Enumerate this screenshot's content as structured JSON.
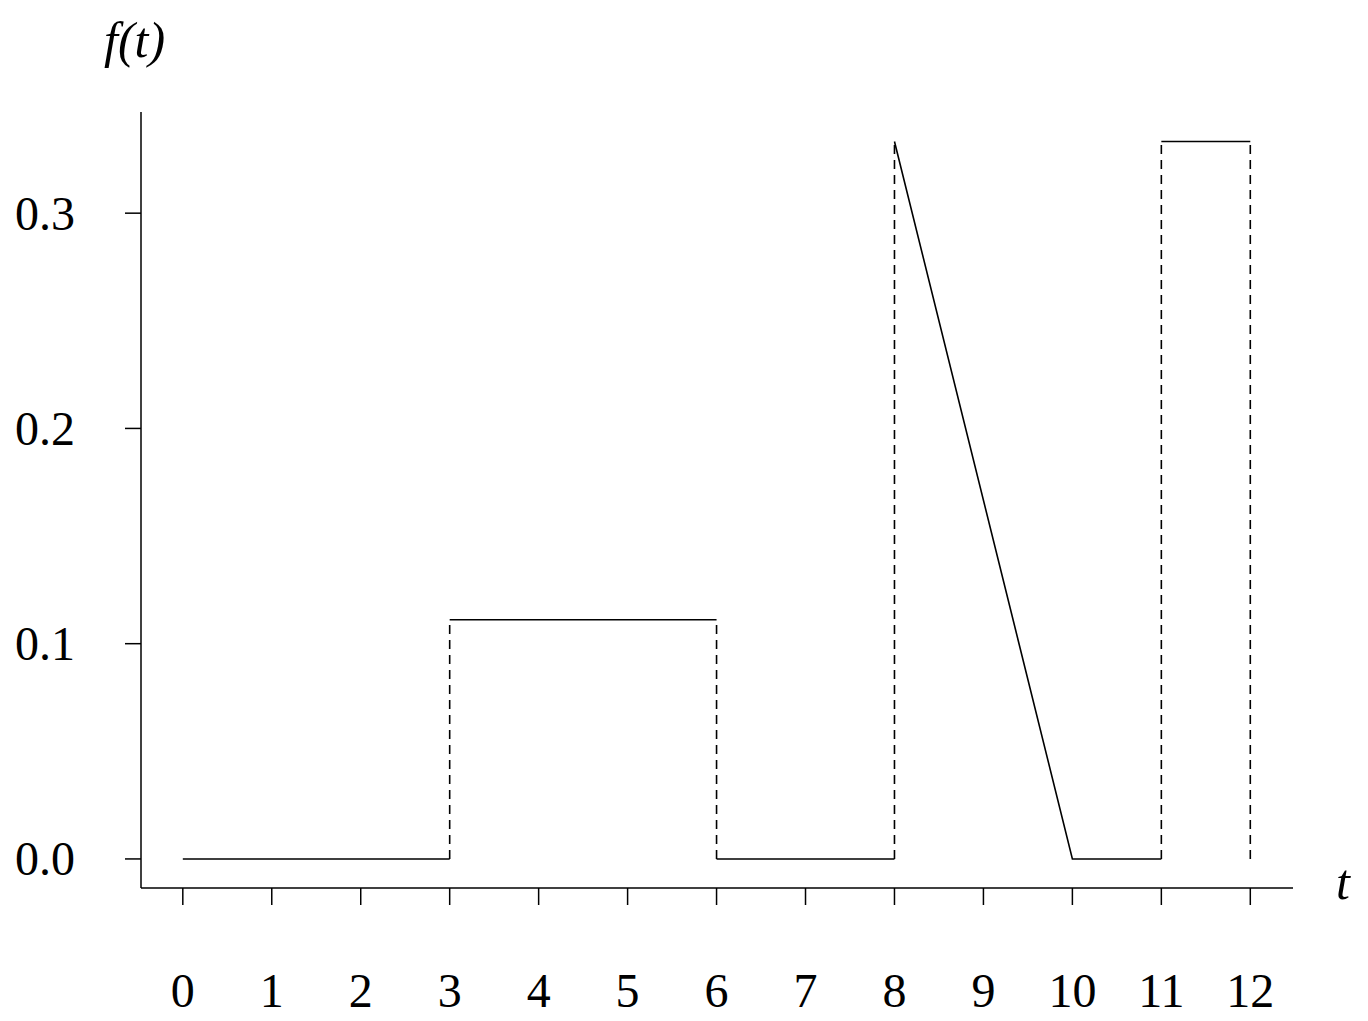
{
  "chart_data": {
    "type": "line",
    "x_label": "t",
    "y_label": "f(t)",
    "grid": false,
    "xlim": [
      -0.47,
      12.48
    ],
    "ylim": [
      -0.0135,
      0.347
    ],
    "xticks": [
      0,
      1,
      2,
      3,
      4,
      5,
      6,
      7,
      8,
      9,
      10,
      11,
      12
    ],
    "yticks": [
      {
        "value": 0,
        "label": "0.0"
      },
      0.1,
      0.2,
      0.3
    ],
    "series": [
      {
        "line_style": "solid",
        "color": "#000000",
        "x": [
          0,
          3,
          3,
          3,
          6,
          6,
          6,
          8,
          8,
          8,
          10,
          11,
          11,
          11,
          12
        ],
        "values": [
          0,
          0,
          null,
          0.1111,
          0.1111,
          null,
          0,
          0,
          null,
          0.3333,
          0,
          0,
          null,
          0.3333,
          0.3333
        ]
      },
      {
        "line_style": "dashed",
        "color": "#000000",
        "x": [
          3,
          3,
          3,
          6,
          6,
          6,
          8,
          8,
          8,
          11,
          11,
          11,
          12,
          12
        ],
        "values": [
          0,
          0.1111,
          null,
          0,
          0.1111,
          null,
          0,
          0.3333,
          null,
          0,
          0.3333,
          null,
          0,
          0.3333
        ]
      }
    ]
  }
}
